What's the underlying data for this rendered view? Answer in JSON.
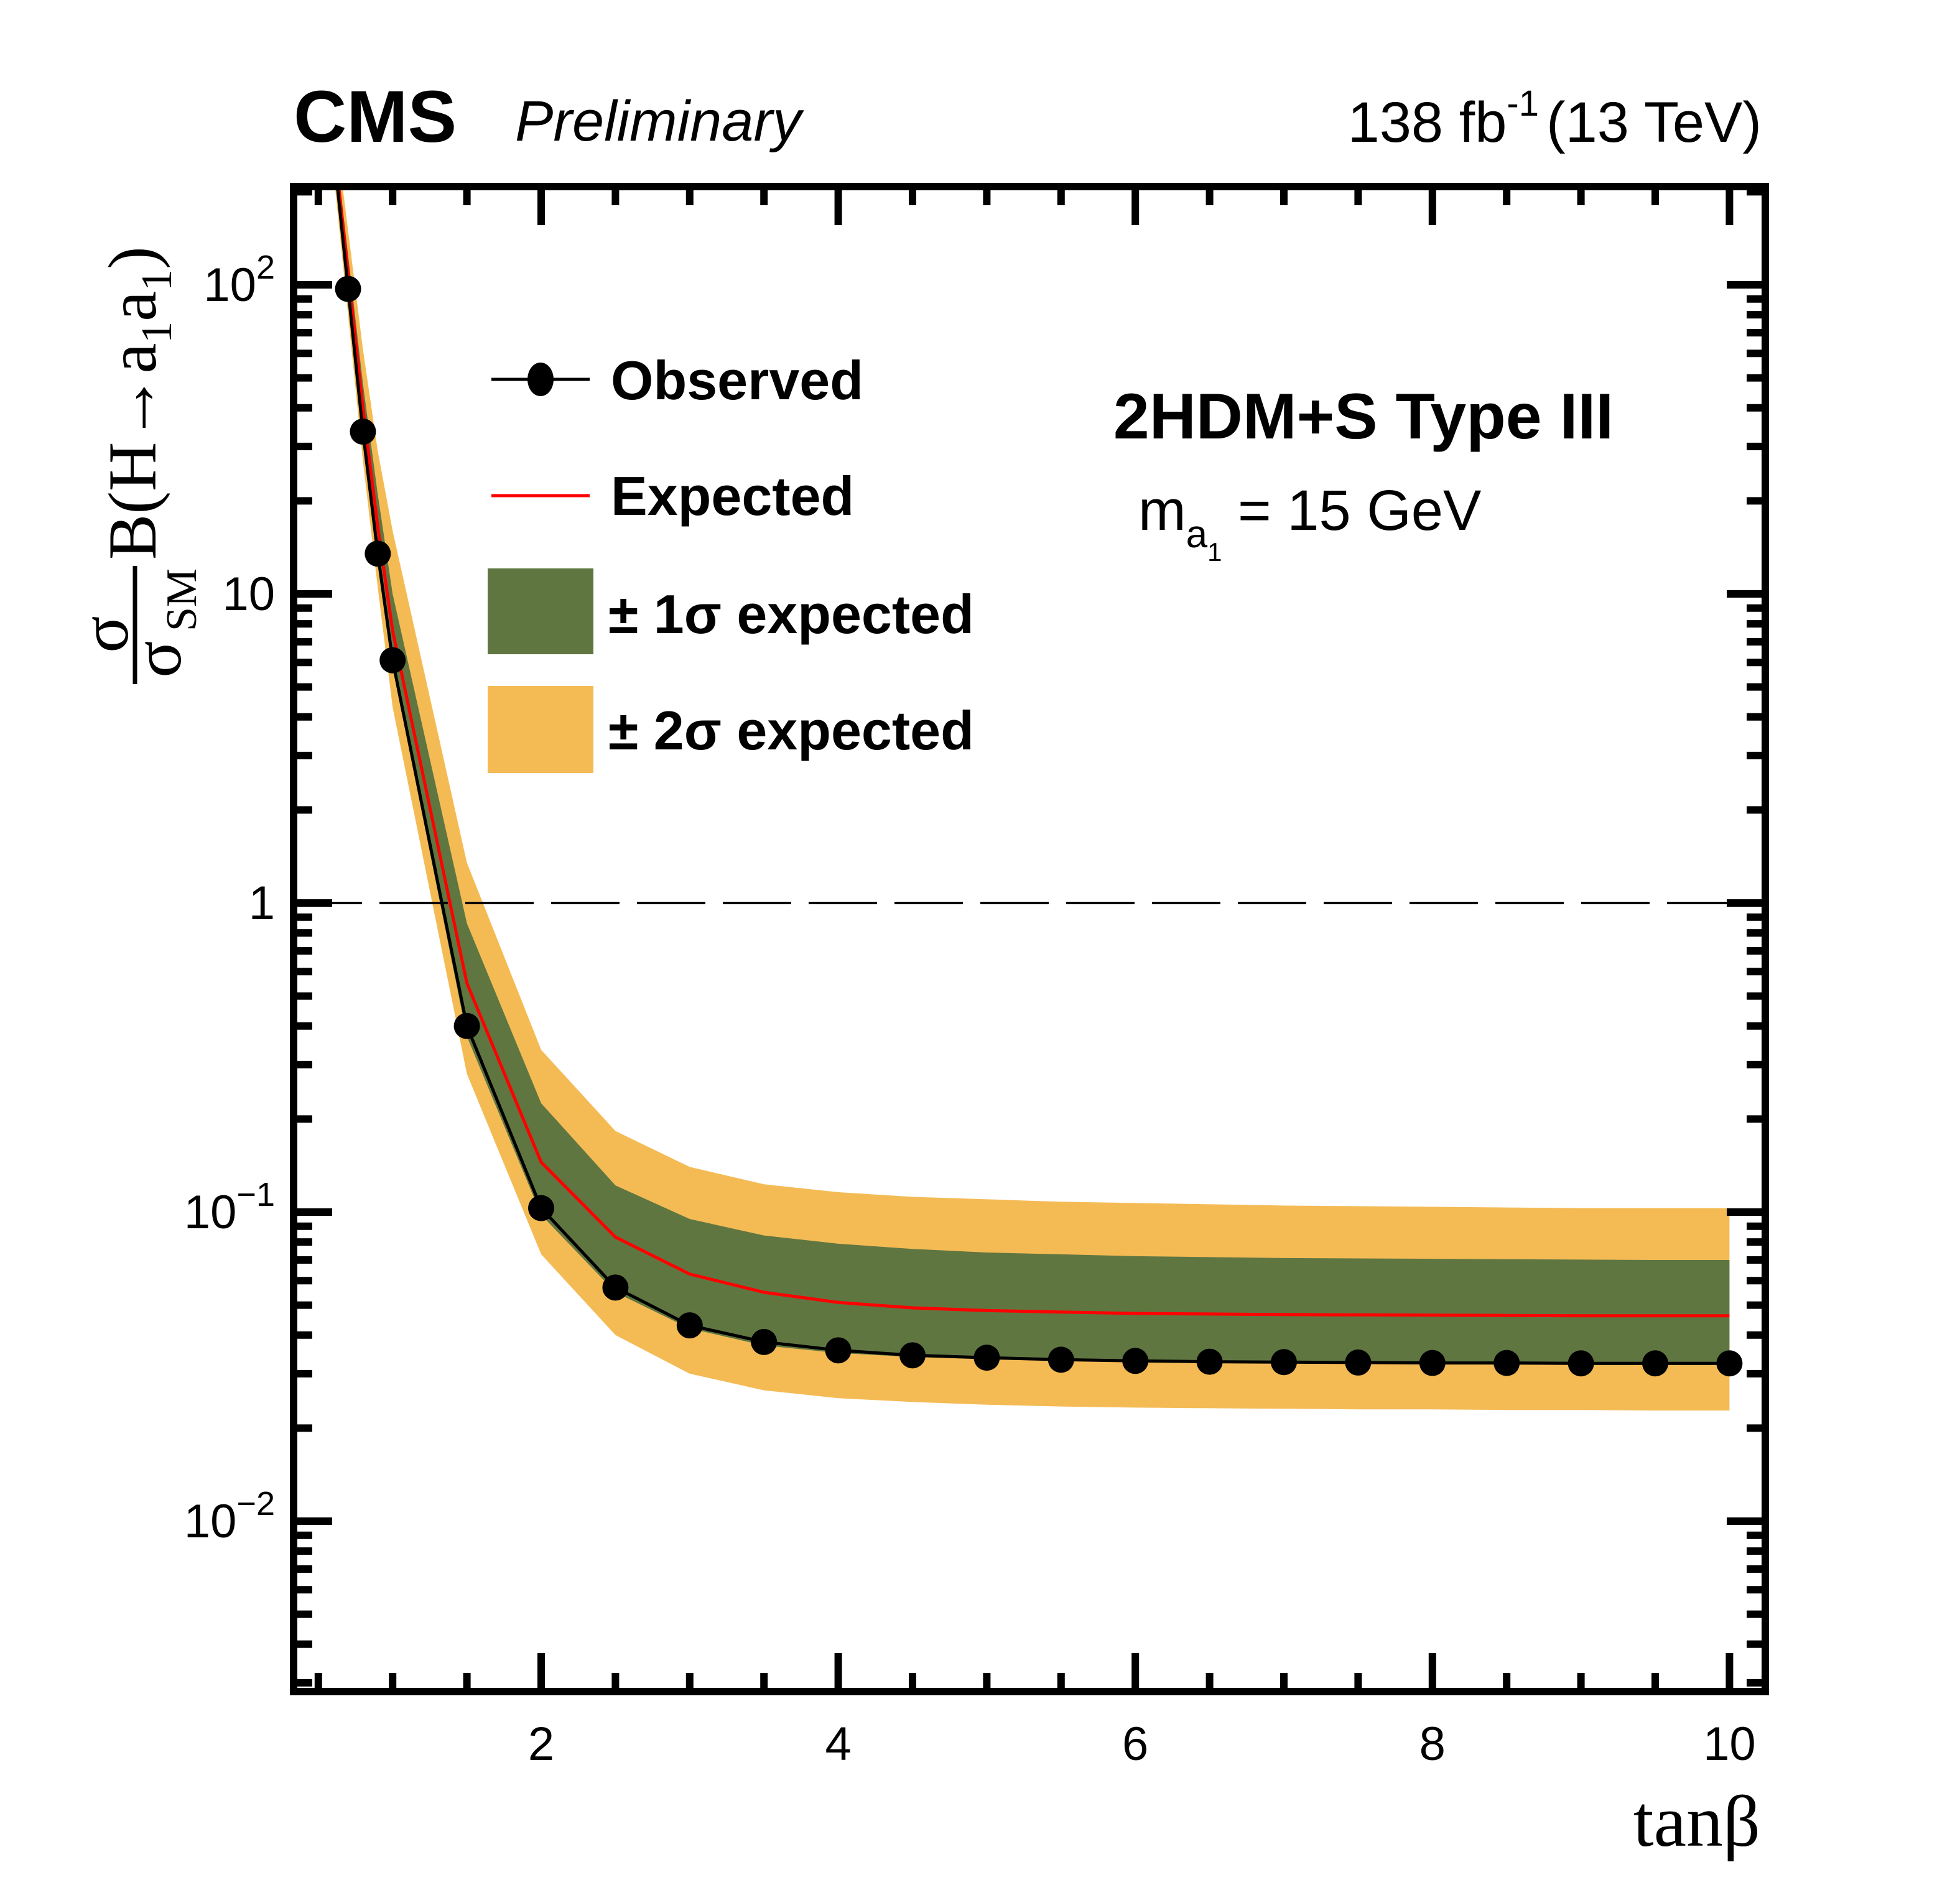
{
  "header": {
    "experiment": "CMS",
    "status": "Preliminary",
    "lumi": "138 fb",
    "lumi_exp": "-1",
    "energy": "(13 TeV)"
  },
  "annotation": {
    "model": "2HDM+S Type III",
    "mass_prefix": "m",
    "mass_sub": "a",
    "mass_subsub": "1",
    "mass_value": " = 15 GeV"
  },
  "legend": {
    "placement": "top-left",
    "items": [
      {
        "key": "observed",
        "label": "Observed"
      },
      {
        "key": "expected",
        "label": "Expected"
      },
      {
        "key": "one_sigma",
        "label": "± 1σ expected"
      },
      {
        "key": "two_sigma",
        "label": "± 2σ expected"
      }
    ]
  },
  "colors": {
    "observed": "#000000",
    "expected": "#ff0000",
    "one_sigma": "#607641",
    "two_sigma": "#f4bb55",
    "reference_line": "#000000"
  },
  "chart_data": {
    "type": "line",
    "title": "",
    "xlabel": "tanβ",
    "ylabel": "σ/σ_SM B(H→a1a1)",
    "ylabel_parts": {
      "num": "σ",
      "den": "σ",
      "den_sub": "SM",
      "rest": "B(H→a",
      "sub1": "1",
      "mid": "a",
      "sub2": "1",
      "close": ")"
    },
    "xlim": [
      0.33,
      10.2
    ],
    "ylim": [
      0.003,
      200
    ],
    "yscale": "log",
    "x_ticks": [
      2,
      4,
      6,
      8,
      10
    ],
    "x_tick_labels": [
      "2",
      "4",
      "6",
      "8",
      "10"
    ],
    "y_ticks": [
      0.01,
      0.1,
      1,
      10,
      100
    ],
    "y_tick_labels": [
      {
        "base": "10",
        "exp": "−2"
      },
      {
        "base": "10",
        "exp": "−1"
      },
      {
        "base": "1",
        "exp": ""
      },
      {
        "base": "10",
        "exp": ""
      },
      {
        "base": "10",
        "exp": "2"
      }
    ],
    "grid": false,
    "reference_line": {
      "y": 1,
      "style": "dashed"
    },
    "x": [
      0.7,
      0.8,
      0.9,
      1.0,
      1.5,
      2.0,
      2.5,
      3.0,
      3.5,
      4.0,
      4.5,
      5.0,
      5.5,
      6.0,
      6.5,
      7.0,
      7.5,
      8.0,
      8.5,
      9.0,
      9.5,
      10.0
    ],
    "series": [
      {
        "name": "Observed",
        "style": "line+markers",
        "values": [
          97,
          33.5,
          13.5,
          6.1,
          0.4,
          0.103,
          0.057,
          0.043,
          0.038,
          0.0357,
          0.0344,
          0.0338,
          0.0333,
          0.033,
          0.0328,
          0.0327,
          0.0326,
          0.0325,
          0.0325,
          0.0324,
          0.0324,
          0.0324
        ]
      },
      {
        "name": "Expected",
        "style": "line",
        "values": [
          110,
          40,
          16.5,
          7.6,
          0.55,
          0.145,
          0.083,
          0.063,
          0.055,
          0.051,
          0.049,
          0.048,
          0.0475,
          0.047,
          0.0468,
          0.0466,
          0.0465,
          0.0464,
          0.0463,
          0.0462,
          0.0462,
          0.0462
        ]
      },
      {
        "name": "+1 sigma",
        "style": "band-edge",
        "values": [
          125,
          48,
          21,
          10,
          0.86,
          0.225,
          0.122,
          0.095,
          0.084,
          0.079,
          0.076,
          0.074,
          0.073,
          0.072,
          0.0715,
          0.071,
          0.0708,
          0.0706,
          0.0704,
          0.0702,
          0.07,
          0.07
        ]
      },
      {
        "name": "-1 sigma",
        "style": "band-edge",
        "values": [
          92,
          32,
          13,
          5.8,
          0.37,
          0.098,
          0.055,
          0.042,
          0.037,
          0.035,
          0.034,
          0.0334,
          0.033,
          0.0327,
          0.0325,
          0.0324,
          0.0323,
          0.0322,
          0.0321,
          0.032,
          0.032,
          0.032
        ]
      },
      {
        "name": "+2 sigma",
        "style": "band-edge",
        "values": [
          150,
          62,
          29,
          16,
          1.35,
          0.335,
          0.183,
          0.14,
          0.123,
          0.116,
          0.112,
          0.11,
          0.108,
          0.107,
          0.106,
          0.105,
          0.1045,
          0.104,
          0.1035,
          0.103,
          0.103,
          0.103
        ]
      },
      {
        "name": "-2 sigma",
        "style": "band-edge",
        "values": [
          80,
          27,
          10.5,
          4.3,
          0.28,
          0.073,
          0.04,
          0.03,
          0.0265,
          0.025,
          0.0243,
          0.0238,
          0.0235,
          0.0233,
          0.0232,
          0.0231,
          0.023,
          0.023,
          0.0229,
          0.0229,
          0.0228,
          0.0228
        ]
      }
    ]
  }
}
